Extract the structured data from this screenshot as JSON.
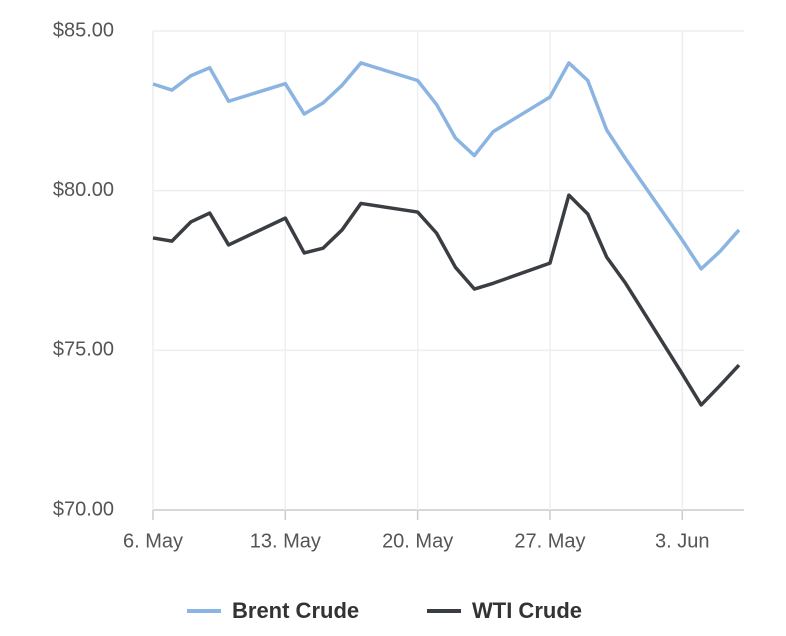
{
  "chart_data": {
    "type": "line",
    "x": [
      "05-06",
      "05-07",
      "05-08",
      "05-09",
      "05-10",
      "05-13",
      "05-14",
      "05-15",
      "05-16",
      "05-17",
      "05-20",
      "05-21",
      "05-22",
      "05-23",
      "05-24",
      "05-27",
      "05-28",
      "05-29",
      "05-30",
      "05-31",
      "06-03",
      "06-04",
      "06-05",
      "06-06"
    ],
    "series": [
      {
        "name": "Brent Crude",
        "color": "#8bb4e2",
        "values": [
          83.34,
          83.15,
          83.6,
          83.85,
          82.8,
          83.35,
          82.4,
          82.75,
          83.3,
          84.0,
          83.45,
          82.7,
          81.65,
          81.1,
          81.85,
          82.93,
          84.0,
          83.45,
          81.9,
          81.0,
          78.45,
          77.55,
          78.1,
          78.77
        ]
      },
      {
        "name": "WTI Crude",
        "color": "#3a3d42",
        "values": [
          78.52,
          78.42,
          79.02,
          79.3,
          78.3,
          79.14,
          78.05,
          78.2,
          78.77,
          79.6,
          79.33,
          78.67,
          77.6,
          76.92,
          77.1,
          77.73,
          79.86,
          79.27,
          77.92,
          77.1,
          74.26,
          73.29,
          73.9,
          74.54
        ]
      }
    ],
    "xlim": [
      "05-06",
      "06-06"
    ],
    "xticks": [
      {
        "value": "05-06",
        "label": "6. May"
      },
      {
        "value": "05-13",
        "label": "13. May"
      },
      {
        "value": "05-20",
        "label": "20. May"
      },
      {
        "value": "05-27",
        "label": "27. May"
      },
      {
        "value": "06-03",
        "label": "3. Jun"
      }
    ],
    "ylim": [
      70,
      85
    ],
    "yticks": [
      {
        "value": 70,
        "label": "$70.00"
      },
      {
        "value": 75,
        "label": "$75.00"
      },
      {
        "value": 80,
        "label": "$80.00"
      },
      {
        "value": 85,
        "label": "$85.00"
      }
    ],
    "grid": true,
    "legend": "bottom"
  }
}
